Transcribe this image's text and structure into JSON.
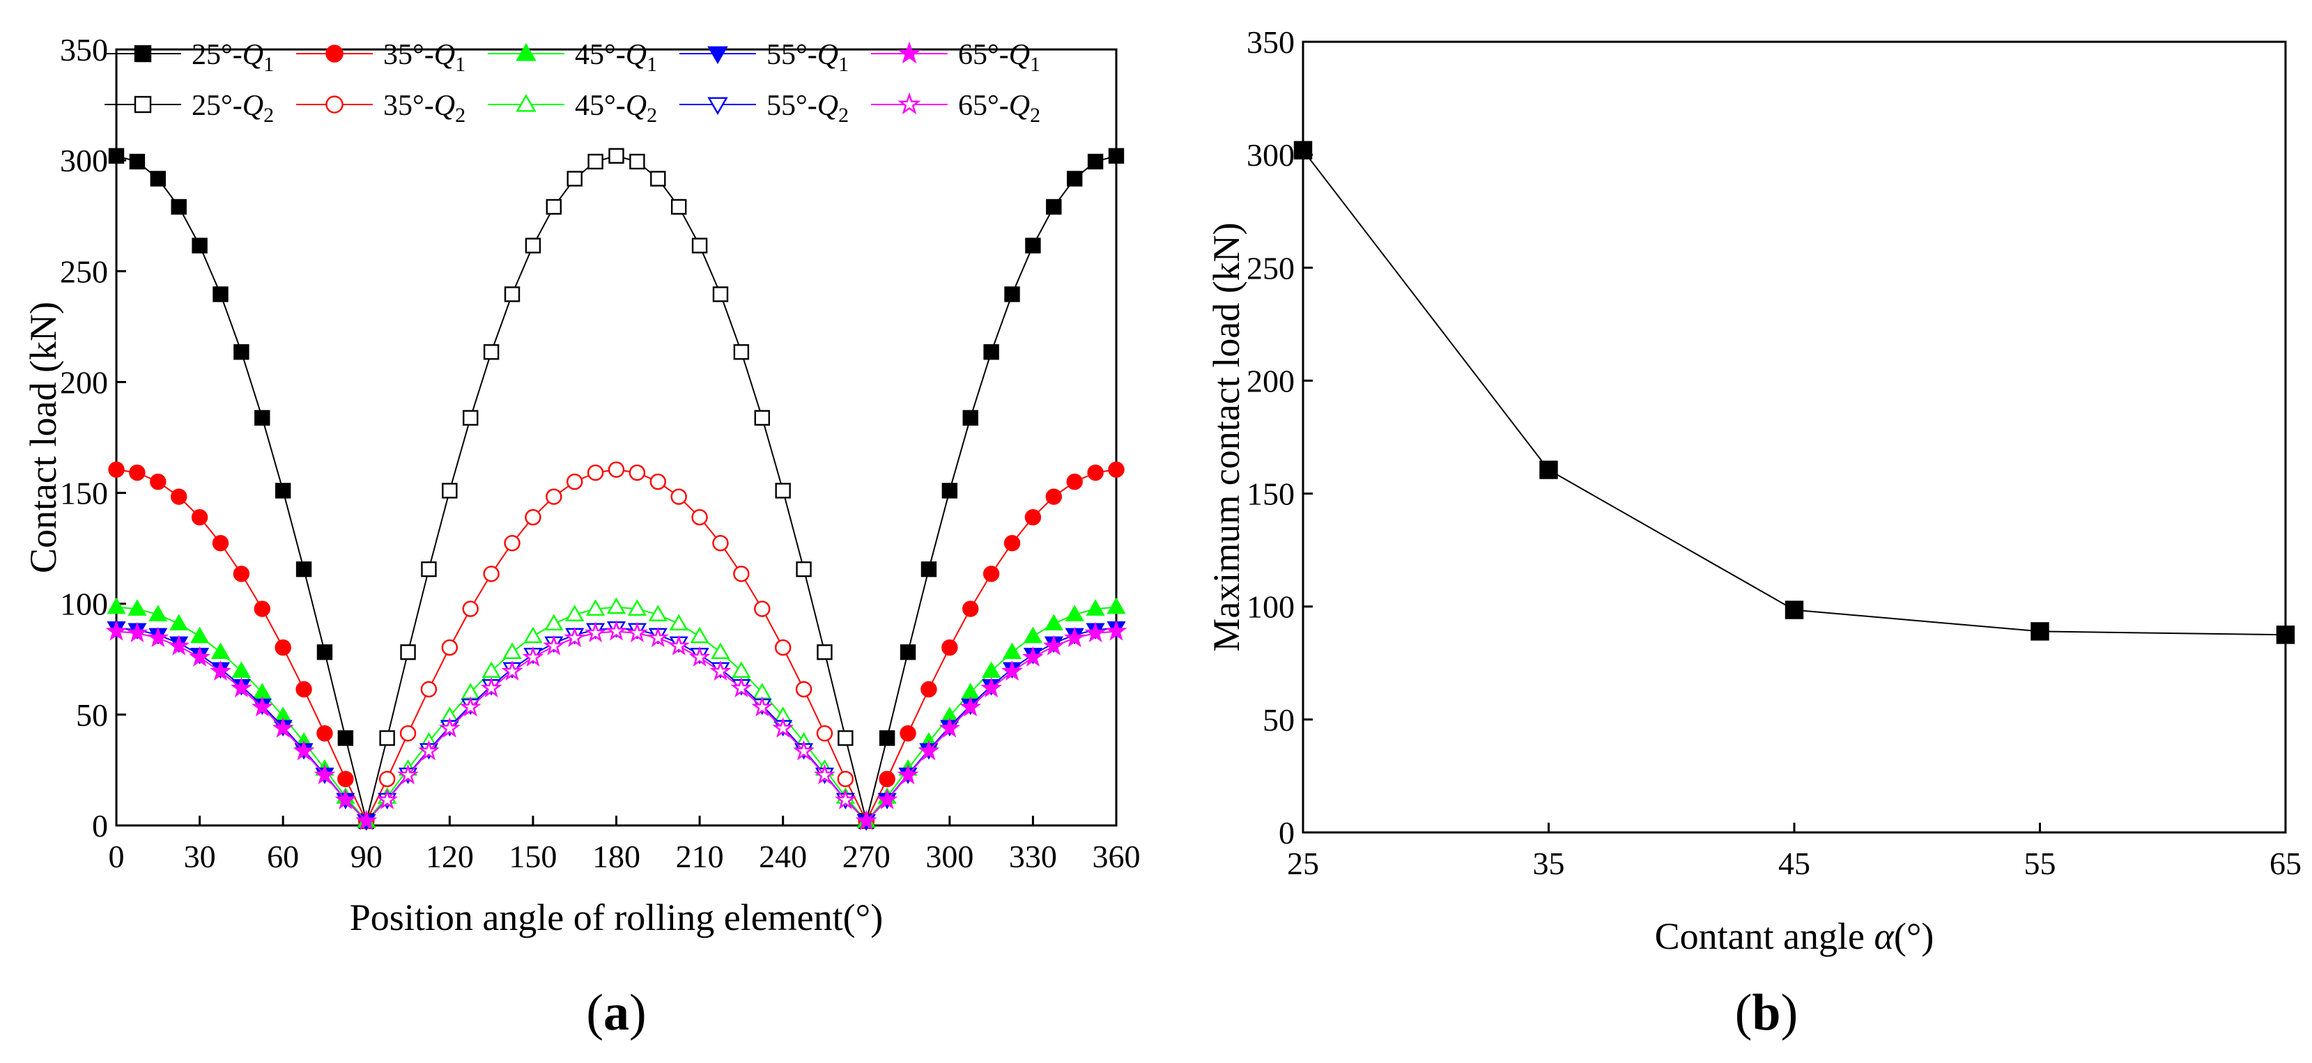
{
  "chart_data": [
    {
      "type": "line",
      "panel_label": "a",
      "xlabel": "Position angle of rolling element(°)",
      "ylabel": "Contact load (kN)",
      "xlim": [
        0,
        360
      ],
      "ylim": [
        0,
        350
      ],
      "xticks": [
        0,
        30,
        60,
        90,
        120,
        150,
        180,
        210,
        240,
        270,
        300,
        330,
        360
      ],
      "yticks": [
        0,
        50,
        100,
        150,
        200,
        250,
        300,
        350
      ],
      "legend_position": "top",
      "series_defs": [
        {
          "name": "25°-Q1",
          "angle": "25°",
          "sub": "1",
          "F": 302,
          "phase": 0,
          "color": "#000000",
          "marker": "square",
          "filled": true
        },
        {
          "name": "35°-Q1",
          "angle": "35°",
          "sub": "1",
          "F": 160.5,
          "phase": 0,
          "color": "#ff0000",
          "marker": "circle",
          "filled": true
        },
        {
          "name": "45°-Q1",
          "angle": "45°",
          "sub": "1",
          "F": 98.5,
          "phase": 0,
          "color": "#00ff00",
          "marker": "triangle-up",
          "filled": true
        },
        {
          "name": "55°-Q1",
          "angle": "55°",
          "sub": "1",
          "F": 89,
          "phase": 0,
          "color": "#0000ff",
          "marker": "triangle-down",
          "filled": true
        },
        {
          "name": "65°-Q1",
          "angle": "65°",
          "sub": "1",
          "F": 87.5,
          "phase": 0,
          "color": "#ff00ff",
          "marker": "star",
          "filled": true
        },
        {
          "name": "25°-Q2",
          "angle": "25°",
          "sub": "2",
          "F": 302,
          "phase": 180,
          "color": "#000000",
          "marker": "square",
          "filled": false
        },
        {
          "name": "35°-Q2",
          "angle": "35°",
          "sub": "2",
          "F": 160.5,
          "phase": 180,
          "color": "#ff0000",
          "marker": "circle",
          "filled": false
        },
        {
          "name": "45°-Q2",
          "angle": "45°",
          "sub": "2",
          "F": 98.5,
          "phase": 180,
          "color": "#00ff00",
          "marker": "triangle-up",
          "filled": false
        },
        {
          "name": "55°-Q2",
          "angle": "55°",
          "sub": "2",
          "F": 89,
          "phase": 180,
          "color": "#0000ff",
          "marker": "triangle-down",
          "filled": false
        },
        {
          "name": "65°-Q2",
          "angle": "65°",
          "sub": "2",
          "F": 87.5,
          "phase": 180,
          "color": "#ff00ff",
          "marker": "star",
          "filled": false
        }
      ],
      "model": "Q = F·cos(θ − phase) clipped at ~0; Q1 sampled every 7.5° on [0,90]∪[270,360], Q2 on [90,270]"
    },
    {
      "type": "line",
      "panel_label": "b",
      "xlabel": "Contant angle α(°)",
      "ylabel": "Maximum contact load (kN)",
      "xlim": [
        25,
        65
      ],
      "ylim": [
        0,
        350
      ],
      "xticks": [
        25,
        35,
        45,
        55,
        65
      ],
      "yticks": [
        0,
        50,
        100,
        150,
        200,
        250,
        300,
        350
      ],
      "x": [
        25,
        35,
        45,
        55,
        65
      ],
      "values": [
        302,
        160.5,
        98.5,
        89,
        87.5
      ],
      "marker": "square",
      "color": "#000000"
    }
  ]
}
